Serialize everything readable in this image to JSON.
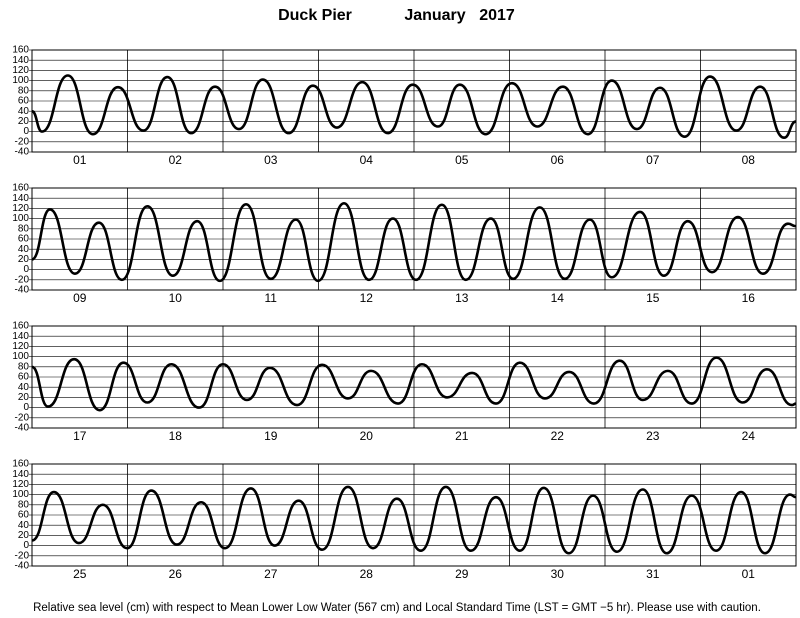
{
  "header": {
    "station": "Duck Pier",
    "month": "January",
    "year": "2017"
  },
  "footer": "Relative sea level (cm) with respect to Mean Lower Low Water (567 cm) and Local Standard Time (LST = GMT −5 hr). Please use with caution.",
  "chart_data": [
    {
      "type": "line",
      "days": [
        "01",
        "02",
        "03",
        "04",
        "05",
        "06",
        "07",
        "08"
      ],
      "color": "#000000",
      "grid": true,
      "xlim": [
        0,
        192
      ],
      "ylim": [
        -40,
        160
      ],
      "yticks": [
        -40,
        -20,
        0,
        20,
        40,
        60,
        80,
        100,
        120,
        140,
        160
      ],
      "x": [
        0,
        2.5,
        9,
        15.3,
        21.6,
        28,
        34,
        40,
        46,
        52,
        58,
        64.5,
        70.6,
        76.6,
        83,
        89.4,
        95.7,
        102,
        107.5,
        114,
        120.6,
        127,
        133.4,
        139.7,
        145.7,
        152,
        157.8,
        164,
        170.4,
        177,
        183,
        189,
        192
      ],
      "values": [
        40,
        0,
        110,
        -5,
        87,
        2,
        107,
        -3,
        88,
        5,
        102,
        -3,
        90,
        8,
        97,
        -3,
        92,
        10,
        92,
        -5,
        95,
        10,
        88,
        -5,
        100,
        5,
        86,
        -10,
        108,
        2,
        88,
        -12,
        20
      ]
    },
    {
      "type": "line",
      "days": [
        "09",
        "10",
        "11",
        "12",
        "13",
        "14",
        "15",
        "16"
      ],
      "color": "#000000",
      "grid": true,
      "xlim": [
        0,
        192
      ],
      "ylim": [
        -40,
        160
      ],
      "yticks": [
        -40,
        -20,
        0,
        20,
        40,
        60,
        80,
        100,
        120,
        140,
        160
      ],
      "x": [
        0,
        4.5,
        10.8,
        16.8,
        22.6,
        29,
        35.4,
        41.5,
        47.2,
        53.8,
        60,
        66.3,
        71.9,
        78.4,
        84.7,
        90.7,
        96.5,
        103,
        109,
        115.3,
        120.9,
        127.6,
        133.9,
        140.2,
        145.7,
        152.8,
        158.8,
        164.8,
        170.9,
        177.4,
        183.7,
        190,
        192
      ],
      "values": [
        20,
        118,
        -8,
        92,
        -20,
        124,
        -12,
        95,
        -22,
        128,
        -18,
        98,
        -22,
        130,
        -20,
        100,
        -20,
        127,
        -20,
        100,
        -18,
        122,
        -18,
        98,
        -15,
        113,
        -12,
        95,
        -5,
        103,
        -8,
        90,
        85
      ]
    },
    {
      "type": "line",
      "days": [
        "17",
        "18",
        "19",
        "20",
        "21",
        "22",
        "23",
        "24"
      ],
      "color": "#000000",
      "grid": true,
      "xlim": [
        0,
        192
      ],
      "ylim": [
        -40,
        160
      ],
      "yticks": [
        -40,
        -20,
        0,
        20,
        40,
        60,
        80,
        100,
        120,
        140,
        160
      ],
      "x": [
        0,
        4,
        10.6,
        17,
        23,
        29,
        35,
        42,
        48,
        54,
        59.8,
        66.6,
        72.9,
        79.4,
        85.2,
        92,
        98,
        104.3,
        110.6,
        116.6,
        122.6,
        128.9,
        135,
        141.2,
        147.7,
        153.5,
        159.8,
        165.8,
        172,
        178.6,
        184.7,
        191,
        192
      ],
      "values": [
        80,
        2,
        95,
        -5,
        88,
        10,
        85,
        0,
        85,
        15,
        78,
        5,
        84,
        18,
        72,
        8,
        85,
        20,
        68,
        8,
        88,
        18,
        70,
        8,
        92,
        15,
        72,
        8,
        98,
        10,
        75,
        5,
        8
      ]
    },
    {
      "type": "line",
      "days": [
        "25",
        "26",
        "27",
        "28",
        "29",
        "30",
        "31",
        "01"
      ],
      "color": "#000000",
      "grid": true,
      "xlim": [
        0,
        192
      ],
      "ylim": [
        -40,
        160
      ],
      "yticks": [
        -40,
        -20,
        0,
        20,
        40,
        60,
        80,
        100,
        120,
        140,
        160
      ],
      "x": [
        0,
        5.5,
        11.8,
        17.8,
        23.9,
        30,
        36.4,
        42.5,
        48.5,
        55,
        61,
        67,
        72.9,
        79.4,
        85.7,
        91.7,
        97.7,
        104,
        110.3,
        116.6,
        122.6,
        128.6,
        134.9,
        141,
        147,
        153.5,
        159.5,
        165.8,
        171.9,
        178.2,
        184.2,
        190.5,
        192
      ],
      "values": [
        10,
        105,
        5,
        80,
        -5,
        108,
        2,
        85,
        -5,
        112,
        0,
        88,
        -8,
        115,
        -5,
        92,
        -10,
        115,
        -10,
        95,
        -10,
        113,
        -15,
        98,
        -12,
        110,
        -15,
        98,
        -10,
        105,
        -15,
        100,
        95
      ]
    }
  ]
}
